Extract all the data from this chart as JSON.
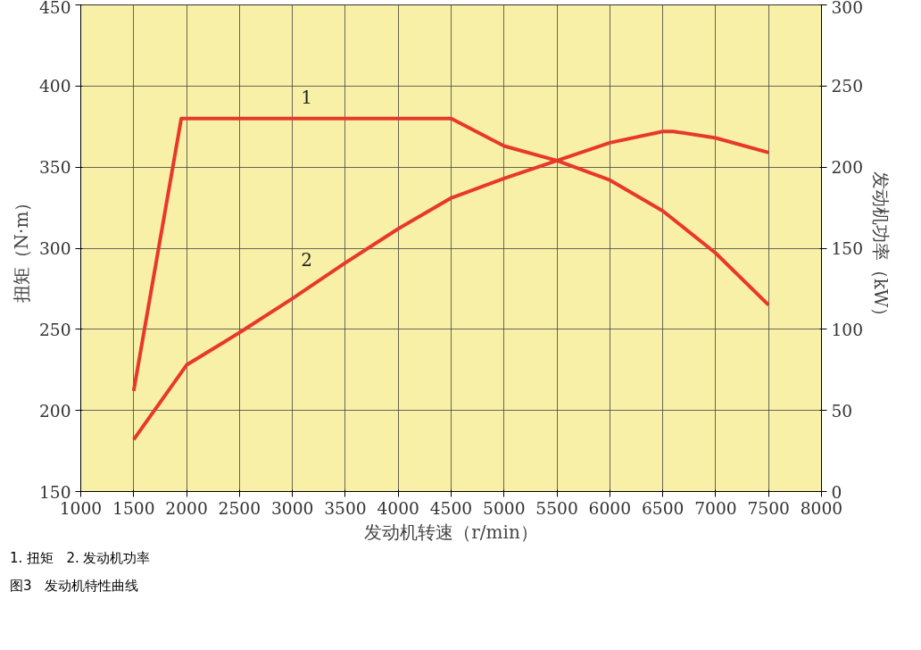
{
  "chart_data": {
    "type": "line",
    "xlabel": "发动机转速（r/min）",
    "ylabel": "扭矩（N·m）",
    "y2label": "发动机功率（kW）",
    "series": [
      {
        "name": "1",
        "color": "#e8382c",
        "x": [
          1500,
          1950,
          4500,
          5000,
          5500,
          6000,
          6500,
          7000,
          7500
        ],
        "values": [
          212,
          380,
          380,
          363,
          354,
          342,
          323,
          297,
          265
        ]
      },
      {
        "name": "2",
        "color": "#e8382c",
        "axis": "y2",
        "x": [
          1500,
          2000,
          2500,
          3000,
          3500,
          4000,
          4500,
          5000,
          5500,
          6000,
          6500,
          6600,
          7000,
          7500
        ],
        "values": [
          32,
          78,
          98,
          119,
          141,
          162,
          181,
          193,
          204,
          215,
          222,
          222,
          218,
          209
        ]
      }
    ],
    "xlim": [
      1000,
      8000
    ],
    "xticks": [
      1000,
      1500,
      2000,
      2500,
      3000,
      3500,
      4000,
      4500,
      5000,
      5500,
      6000,
      6500,
      7000,
      7500,
      8000
    ],
    "ylim": [
      150,
      450
    ],
    "yticks": [
      150,
      200,
      250,
      300,
      350,
      400,
      450
    ],
    "y2lim": [
      0,
      300
    ],
    "y2ticks": [
      0,
      50,
      100,
      150,
      200,
      250,
      300
    ],
    "grid": true,
    "line_style": "solid",
    "annotations": [
      "1. 扭矩   2. 发动机功率",
      "图3   发动机特性曲线"
    ]
  }
}
